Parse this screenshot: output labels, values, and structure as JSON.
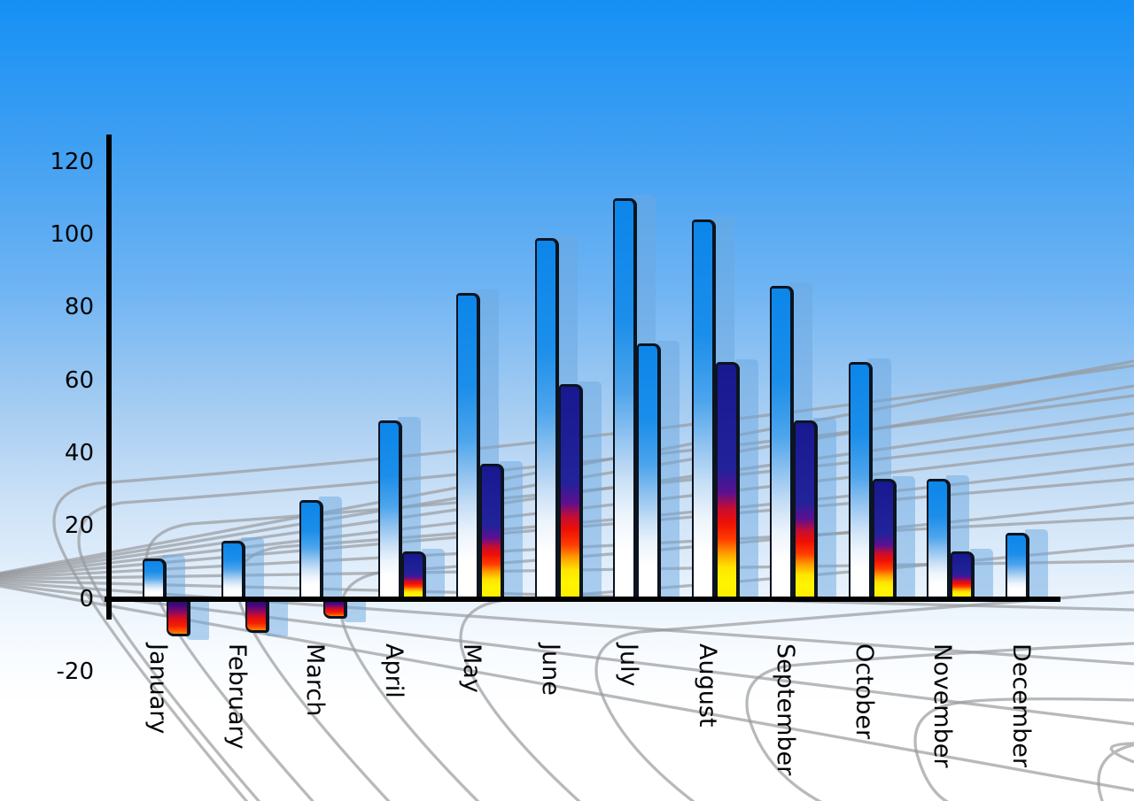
{
  "chart_data": {
    "type": "bar",
    "title": "",
    "xlabel": "",
    "ylabel": "",
    "categories": [
      "January",
      "February",
      "March",
      "April",
      "May",
      "June",
      "July",
      "August",
      "September",
      "October",
      "November",
      "December"
    ],
    "series": [
      {
        "name": "primary-blue-bars",
        "values": [
          11,
          16,
          27,
          49,
          84,
          99,
          110,
          104,
          86,
          65,
          33,
          18
        ]
      },
      {
        "name": "secondary-bars",
        "values": [
          -10,
          -9,
          -5,
          13,
          37,
          59,
          70,
          65,
          49,
          33,
          13,
          null
        ]
      }
    ],
    "secondary_bar_style": [
      "accent",
      "accent",
      "accent",
      "accent",
      "accent",
      "accent",
      "blue",
      "accent",
      "accent",
      "accent",
      "accent",
      "none"
    ],
    "yticks": [
      120,
      100,
      80,
      60,
      40,
      20,
      0,
      -20
    ],
    "ylim": [
      -20,
      120
    ],
    "legend": "none",
    "grid": "decorative perspective radar-floor grid, gray, behind bars"
  },
  "colors": {
    "sky_top": "#1590f5",
    "sky_bottom": "#ffffff",
    "bar_blue_top": "#0c86ea",
    "bar_blue_bottom": "#ffffff",
    "bar_outline": "#0c1420",
    "accent_navy": "#181890",
    "accent_red": "#ee1005",
    "accent_yellow": "#ffee00",
    "shadow_bar": "rgba(107,167,223,0.5)",
    "grid_line": "#97989b",
    "axis": "#000000",
    "label_text": "#050505"
  }
}
